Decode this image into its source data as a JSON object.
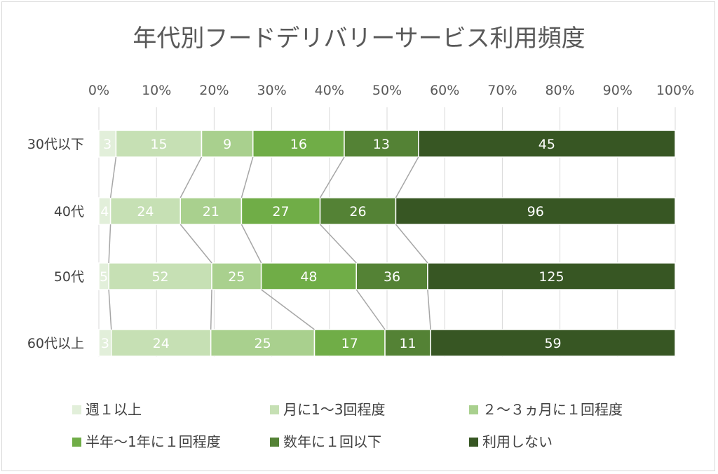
{
  "chart_data": {
    "type": "bar",
    "orientation": "horizontal",
    "stacked": "percent",
    "title": "年代別フードデリバリーサービス利用頻度",
    "categories": [
      "30代以下",
      "40代",
      "50代",
      "60代以上"
    ],
    "x_tick_labels": [
      "0%",
      "10%",
      "20%",
      "30%",
      "40%",
      "50%",
      "60%",
      "70%",
      "80%",
      "90%",
      "100%"
    ],
    "xlim": [
      0,
      100
    ],
    "grid": true,
    "series_lines": true,
    "legend_position": "bottom",
    "series": [
      {
        "name": "週１以上",
        "color": "#e2efda",
        "values": [
          3,
          4,
          5,
          3
        ]
      },
      {
        "name": "月に1〜3回程度",
        "color": "#c6e0b4",
        "values": [
          15,
          24,
          52,
          24
        ]
      },
      {
        "name": "２〜３ヵ月に１回程度",
        "color": "#a9d08e",
        "values": [
          9,
          21,
          25,
          25
        ]
      },
      {
        "name": "半年〜1年に１回程度",
        "color": "#70ad47",
        "values": [
          16,
          27,
          48,
          17
        ]
      },
      {
        "name": "数年に１回以下",
        "color": "#548235",
        "values": [
          13,
          26,
          36,
          11
        ]
      },
      {
        "name": "利用しない",
        "color": "#375623",
        "values": [
          45,
          96,
          125,
          59
        ]
      }
    ]
  }
}
